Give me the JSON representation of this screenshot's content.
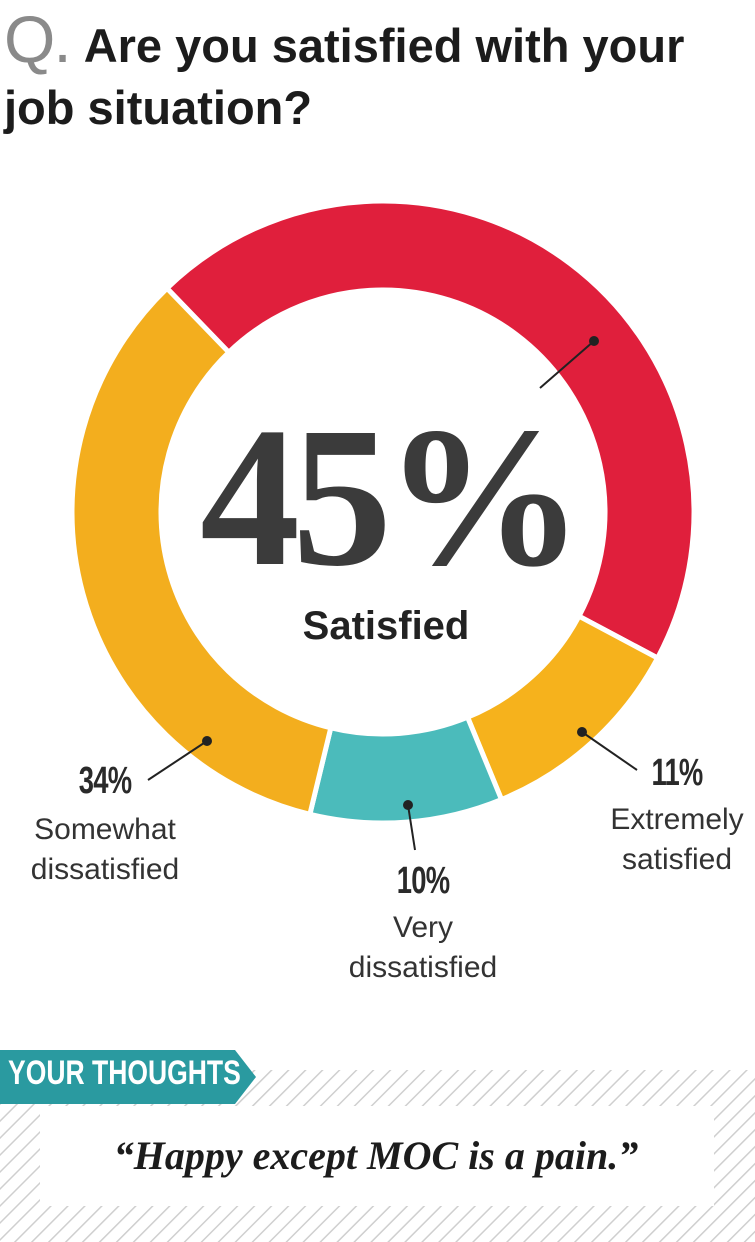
{
  "header": {
    "q": "Q.",
    "title": "Are you satisfied with your job situation?"
  },
  "chart_data": {
    "type": "donut",
    "categories": [
      "Satisfied",
      "Extremely satisfied",
      "Very dissatisfied",
      "Somewhat dissatisfied"
    ],
    "values": [
      45,
      11,
      10,
      34
    ],
    "value_labels": [
      "45%",
      "11%",
      "10%",
      "34%"
    ],
    "colors": [
      "#e01f3c",
      "#f6b21c",
      "#4bbbbb",
      "#f3ae1e"
    ]
  },
  "thoughts": {
    "label": "YOUR THOUGHTS",
    "quote": "“Happy except MOC is a pain.”"
  }
}
